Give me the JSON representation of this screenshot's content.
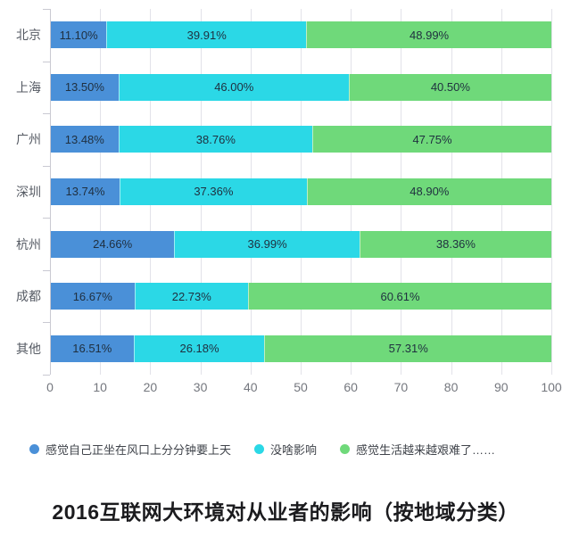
{
  "chart_data": {
    "type": "bar",
    "orientation": "horizontal",
    "stacked": true,
    "title": "2016互联网大环境对从业者的影响（按地域分类）",
    "categories": [
      "北京",
      "上海",
      "广州",
      "深圳",
      "杭州",
      "成都",
      "其他"
    ],
    "series": [
      {
        "name": "感觉自己正坐在风口上分分钟要上天",
        "color": "#4a90d8",
        "values": [
          11.1,
          13.5,
          13.48,
          13.74,
          24.66,
          16.67,
          16.51
        ],
        "labels": [
          "11.10%",
          "13.50%",
          "13.48%",
          "13.74%",
          "24.66%",
          "16.67%",
          "16.51%"
        ]
      },
      {
        "name": "没啥影响",
        "color": "#2bd8e6",
        "values": [
          39.91,
          46.0,
          38.76,
          37.36,
          36.99,
          22.73,
          26.18
        ],
        "labels": [
          "39.91%",
          "46.00%",
          "38.76%",
          "37.36%",
          "36.99%",
          "22.73%",
          "26.18%"
        ]
      },
      {
        "name": "感觉生活越来越艰难了……",
        "color": "#6fd97a",
        "values": [
          48.99,
          40.5,
          47.75,
          48.9,
          38.36,
          60.61,
          57.31
        ],
        "labels": [
          "48.99%",
          "40.50%",
          "47.75%",
          "48.90%",
          "38.36%",
          "60.61%",
          "57.31%"
        ]
      }
    ],
    "xlim": [
      0,
      100
    ],
    "x_ticks": [
      "0",
      "10",
      "20",
      "30",
      "40",
      "50",
      "60",
      "70",
      "80",
      "90",
      "100"
    ],
    "grid": true,
    "legend_position": "bottom",
    "colors": {
      "gridline": "#e2e2e9",
      "axis": "#c9c9d2",
      "category_label": "#555a63",
      "tick_label": "#74777e",
      "bar_label": "#1f2f3f"
    }
  }
}
